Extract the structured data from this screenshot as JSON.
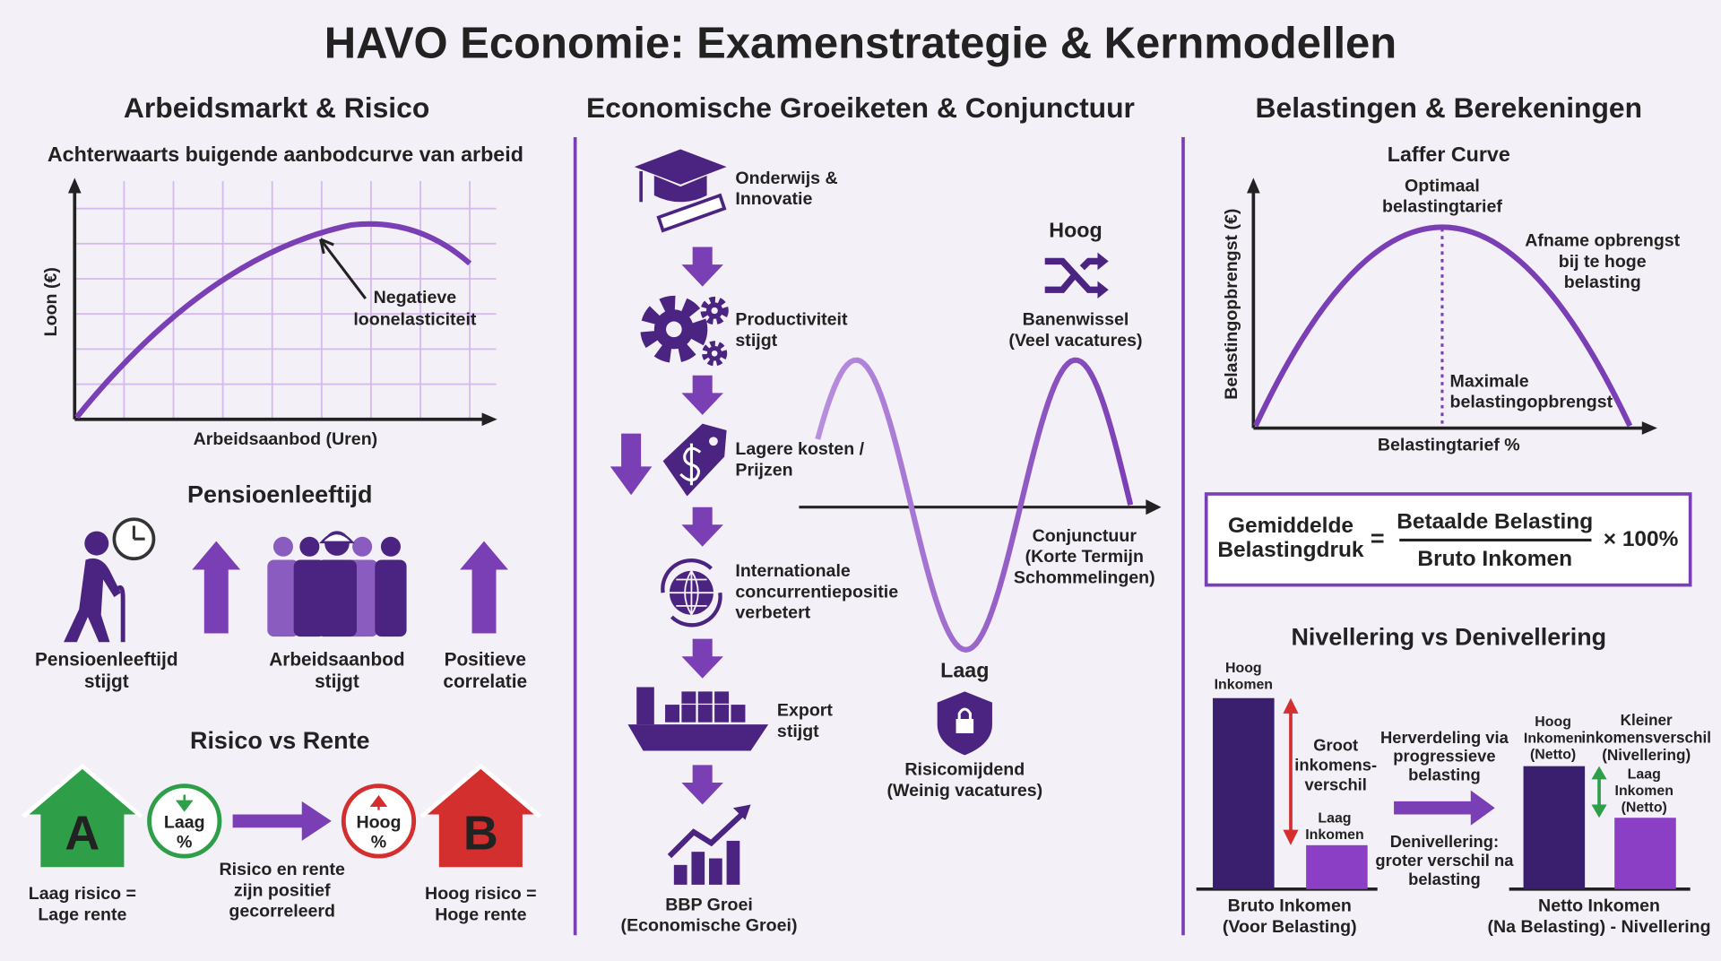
{
  "title": "HAVO Economie: Examenstrategie & Kernmodellen",
  "left": {
    "heading": "Arbeidsmarkt & Risico",
    "labor": {
      "title": "Achterwaarts buigende aanbodcurve van arbeid",
      "y_label": "Loon (€)",
      "x_label": "Arbeidsaanbod (Uren)",
      "annotation": [
        "Negatieve",
        "loonelasticiteit"
      ]
    },
    "pension": {
      "title": "Pensioenleeftijd",
      "captions": [
        [
          "Pensioenleeftijd",
          "stijgt"
        ],
        [
          "Arbeidsaanbod",
          "stijgt"
        ],
        [
          "Positieve",
          "correlatie"
        ]
      ]
    },
    "risk": {
      "title": "Risico vs Rente",
      "house_a": "A",
      "house_b": "B",
      "low_badge": [
        "Laag",
        "%"
      ],
      "high_badge": [
        "Hoog",
        "%"
      ],
      "low_caption": [
        "Laag risico =",
        "Lage rente"
      ],
      "middle_caption": [
        "Risico en rente",
        "zijn positief",
        "gecorreleerd"
      ],
      "high_caption": [
        "Hoog risico =",
        "Hoge rente"
      ]
    }
  },
  "middle": {
    "heading": "Economische Groeiketen & Conjunctuur",
    "chain": [
      [
        "Onderwijs &",
        "Innovatie"
      ],
      [
        "Productiviteit",
        "stijgt"
      ],
      [
        "Lagere kosten /",
        "Prijzen"
      ],
      [
        "Internationale",
        "concurrentiepositie",
        "verbetert"
      ],
      [
        "Export",
        "stijgt"
      ],
      [
        "BBP Groei",
        "(Economische Groei)"
      ]
    ],
    "high_title": "Hoog",
    "high_label": [
      "Banenwissel",
      "(Veel vacatures)"
    ],
    "low_title": "Laag",
    "low_label": [
      "Risicomijdend",
      "(Weinig vacatures)"
    ],
    "axis_label": [
      "Conjunctuur",
      "(Korte Termijn",
      "Schommelingen)"
    ]
  },
  "right": {
    "heading": "Belastingen & Berekeningen",
    "laffer": {
      "title": "Laffer Curve",
      "y_label": "Belastingopbrengst (€)",
      "x_label": "Belastingtarief %",
      "peak_label": [
        "Optimaal",
        "belastingtarief"
      ],
      "right_label": [
        "Afname opbrengst",
        "bij te hoge",
        "belasting"
      ],
      "max_label": [
        "Maximale",
        "belastingopbrengst"
      ]
    },
    "formula": {
      "lhs": [
        "Gemiddelde",
        "Belastingdruk"
      ],
      "equals": "=",
      "numerator": "Betaalde Belasting",
      "denominator": "Bruto Inkomen",
      "multiplier": "× 100%"
    },
    "nivellering": {
      "title": "Nivellering vs Denivellering",
      "high_gross": [
        "Hoog",
        "Inkomen"
      ],
      "low_gross": [
        "Laag",
        "Inkomen"
      ],
      "gap_label": [
        "Groot",
        "inkomens-",
        "verschil"
      ],
      "redistribution": [
        "Herverdeling via",
        "progressieve",
        "belasting"
      ],
      "denivellering": [
        "Denivellering:",
        "groter verschil na",
        "belasting"
      ],
      "high_net": [
        "Hoog",
        "Inkomen",
        "(Netto)"
      ],
      "low_net": [
        "Laag",
        "Inkomen",
        "(Netto)"
      ],
      "small_gap": [
        "Kleiner",
        "inkomensverschil",
        "(Nivellering)"
      ],
      "gross_caption": [
        "Bruto Inkomen",
        "(Voor Belasting)"
      ],
      "net_caption": [
        "Netto Inkomen",
        "(Na Belasting) - Nivellering"
      ]
    }
  }
}
